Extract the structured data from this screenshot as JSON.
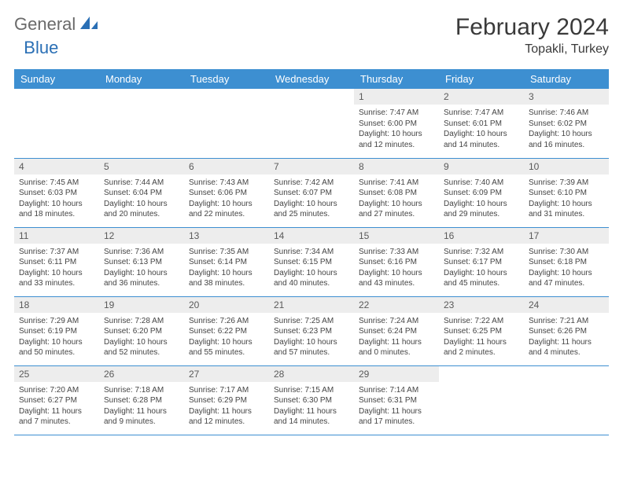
{
  "brand": {
    "text1": "General",
    "text2": "Blue"
  },
  "title": "February 2024",
  "location": "Topakli, Turkey",
  "colors": {
    "header_bg": "#3d8fd1",
    "header_text": "#ffffff",
    "daynum_bg": "#ededed",
    "border": "#3d8fd1",
    "title": "#3a3a3a"
  },
  "dayNames": [
    "Sunday",
    "Monday",
    "Tuesday",
    "Wednesday",
    "Thursday",
    "Friday",
    "Saturday"
  ],
  "font": {
    "title_size": 30,
    "header_size": 13,
    "content_size": 10
  },
  "weeks": [
    [
      {
        "num": "",
        "lines": []
      },
      {
        "num": "",
        "lines": []
      },
      {
        "num": "",
        "lines": []
      },
      {
        "num": "",
        "lines": []
      },
      {
        "num": "1",
        "lines": [
          "Sunrise: 7:47 AM",
          "Sunset: 6:00 PM",
          "Daylight: 10 hours and 12 minutes."
        ]
      },
      {
        "num": "2",
        "lines": [
          "Sunrise: 7:47 AM",
          "Sunset: 6:01 PM",
          "Daylight: 10 hours and 14 minutes."
        ]
      },
      {
        "num": "3",
        "lines": [
          "Sunrise: 7:46 AM",
          "Sunset: 6:02 PM",
          "Daylight: 10 hours and 16 minutes."
        ]
      }
    ],
    [
      {
        "num": "4",
        "lines": [
          "Sunrise: 7:45 AM",
          "Sunset: 6:03 PM",
          "Daylight: 10 hours and 18 minutes."
        ]
      },
      {
        "num": "5",
        "lines": [
          "Sunrise: 7:44 AM",
          "Sunset: 6:04 PM",
          "Daylight: 10 hours and 20 minutes."
        ]
      },
      {
        "num": "6",
        "lines": [
          "Sunrise: 7:43 AM",
          "Sunset: 6:06 PM",
          "Daylight: 10 hours and 22 minutes."
        ]
      },
      {
        "num": "7",
        "lines": [
          "Sunrise: 7:42 AM",
          "Sunset: 6:07 PM",
          "Daylight: 10 hours and 25 minutes."
        ]
      },
      {
        "num": "8",
        "lines": [
          "Sunrise: 7:41 AM",
          "Sunset: 6:08 PM",
          "Daylight: 10 hours and 27 minutes."
        ]
      },
      {
        "num": "9",
        "lines": [
          "Sunrise: 7:40 AM",
          "Sunset: 6:09 PM",
          "Daylight: 10 hours and 29 minutes."
        ]
      },
      {
        "num": "10",
        "lines": [
          "Sunrise: 7:39 AM",
          "Sunset: 6:10 PM",
          "Daylight: 10 hours and 31 minutes."
        ]
      }
    ],
    [
      {
        "num": "11",
        "lines": [
          "Sunrise: 7:37 AM",
          "Sunset: 6:11 PM",
          "Daylight: 10 hours and 33 minutes."
        ]
      },
      {
        "num": "12",
        "lines": [
          "Sunrise: 7:36 AM",
          "Sunset: 6:13 PM",
          "Daylight: 10 hours and 36 minutes."
        ]
      },
      {
        "num": "13",
        "lines": [
          "Sunrise: 7:35 AM",
          "Sunset: 6:14 PM",
          "Daylight: 10 hours and 38 minutes."
        ]
      },
      {
        "num": "14",
        "lines": [
          "Sunrise: 7:34 AM",
          "Sunset: 6:15 PM",
          "Daylight: 10 hours and 40 minutes."
        ]
      },
      {
        "num": "15",
        "lines": [
          "Sunrise: 7:33 AM",
          "Sunset: 6:16 PM",
          "Daylight: 10 hours and 43 minutes."
        ]
      },
      {
        "num": "16",
        "lines": [
          "Sunrise: 7:32 AM",
          "Sunset: 6:17 PM",
          "Daylight: 10 hours and 45 minutes."
        ]
      },
      {
        "num": "17",
        "lines": [
          "Sunrise: 7:30 AM",
          "Sunset: 6:18 PM",
          "Daylight: 10 hours and 47 minutes."
        ]
      }
    ],
    [
      {
        "num": "18",
        "lines": [
          "Sunrise: 7:29 AM",
          "Sunset: 6:19 PM",
          "Daylight: 10 hours and 50 minutes."
        ]
      },
      {
        "num": "19",
        "lines": [
          "Sunrise: 7:28 AM",
          "Sunset: 6:20 PM",
          "Daylight: 10 hours and 52 minutes."
        ]
      },
      {
        "num": "20",
        "lines": [
          "Sunrise: 7:26 AM",
          "Sunset: 6:22 PM",
          "Daylight: 10 hours and 55 minutes."
        ]
      },
      {
        "num": "21",
        "lines": [
          "Sunrise: 7:25 AM",
          "Sunset: 6:23 PM",
          "Daylight: 10 hours and 57 minutes."
        ]
      },
      {
        "num": "22",
        "lines": [
          "Sunrise: 7:24 AM",
          "Sunset: 6:24 PM",
          "Daylight: 11 hours and 0 minutes."
        ]
      },
      {
        "num": "23",
        "lines": [
          "Sunrise: 7:22 AM",
          "Sunset: 6:25 PM",
          "Daylight: 11 hours and 2 minutes."
        ]
      },
      {
        "num": "24",
        "lines": [
          "Sunrise: 7:21 AM",
          "Sunset: 6:26 PM",
          "Daylight: 11 hours and 4 minutes."
        ]
      }
    ],
    [
      {
        "num": "25",
        "lines": [
          "Sunrise: 7:20 AM",
          "Sunset: 6:27 PM",
          "Daylight: 11 hours and 7 minutes."
        ]
      },
      {
        "num": "26",
        "lines": [
          "Sunrise: 7:18 AM",
          "Sunset: 6:28 PM",
          "Daylight: 11 hours and 9 minutes."
        ]
      },
      {
        "num": "27",
        "lines": [
          "Sunrise: 7:17 AM",
          "Sunset: 6:29 PM",
          "Daylight: 11 hours and 12 minutes."
        ]
      },
      {
        "num": "28",
        "lines": [
          "Sunrise: 7:15 AM",
          "Sunset: 6:30 PM",
          "Daylight: 11 hours and 14 minutes."
        ]
      },
      {
        "num": "29",
        "lines": [
          "Sunrise: 7:14 AM",
          "Sunset: 6:31 PM",
          "Daylight: 11 hours and 17 minutes."
        ]
      },
      {
        "num": "",
        "lines": []
      },
      {
        "num": "",
        "lines": []
      }
    ]
  ]
}
